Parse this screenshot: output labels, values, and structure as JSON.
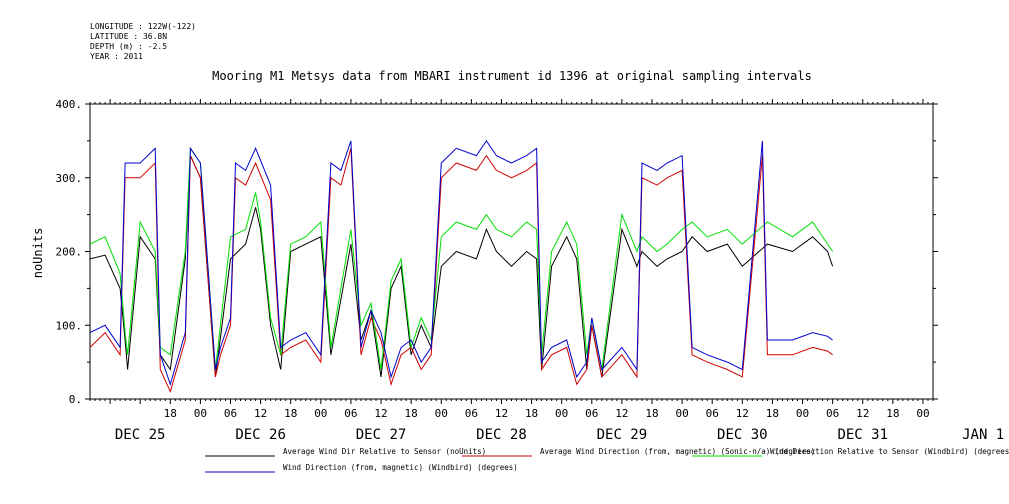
{
  "header": {
    "lines": [
      "LONGITUDE : 122W(-122)",
      "LATITUDE : 36.8N",
      "DEPTH (m) : -2.5",
      "YEAR : 2011"
    ]
  },
  "colors": {
    "black_series": "#000000",
    "red_series": "#d00000",
    "green_series": "#00e000",
    "blue_series": "#0000d0"
  },
  "chart_data": {
    "type": "line",
    "title": "Mooring M1 Metsys data from MBARI instrument id 1396 at original sampling intervals",
    "ylabel": "noUnits",
    "xlabel": "",
    "ylim": [
      0,
      400
    ],
    "y_ticks": [
      "0.",
      "100.",
      "200.",
      "300.",
      "400."
    ],
    "x_range_hours": [
      -10,
      14
    ],
    "x_tick_labels": [
      "18",
      "00",
      "06",
      "12",
      "18",
      "00",
      "06",
      "12",
      "18",
      "00",
      "06",
      "12",
      "18",
      "00",
      "06",
      "12",
      "18",
      "00",
      "06",
      "12",
      "18",
      "00",
      "06",
      "12",
      "18",
      "00",
      "06",
      "12"
    ],
    "date_labels": [
      "DEC 25",
      "DEC 26",
      "DEC 27",
      "DEC 28",
      "DEC 29",
      "DEC 30",
      "DEC 31",
      "JAN  1"
    ],
    "grid": false,
    "legend_position": "bottom",
    "series": [
      {
        "name": "Average Wind Dir Relative to Sensor (noUnits)",
        "color": "#000000",
        "points": [
          [
            -10,
            190
          ],
          [
            -7,
            195
          ],
          [
            -4,
            150
          ],
          [
            -3,
            80
          ],
          [
            -2.5,
            40
          ],
          [
            0,
            220
          ],
          [
            3,
            190
          ],
          [
            4,
            60
          ],
          [
            6,
            40
          ],
          [
            9,
            190
          ],
          [
            10,
            330
          ],
          [
            12,
            300
          ],
          [
            15,
            30
          ],
          [
            18,
            190
          ],
          [
            21,
            210
          ],
          [
            23,
            260
          ],
          [
            24,
            230
          ],
          [
            26,
            100
          ],
          [
            28,
            40
          ],
          [
            30,
            200
          ],
          [
            33,
            210
          ],
          [
            36,
            220
          ],
          [
            38,
            60
          ],
          [
            42,
            210
          ],
          [
            44,
            80
          ],
          [
            46,
            120
          ],
          [
            48,
            30
          ],
          [
            50,
            150
          ],
          [
            52,
            180
          ],
          [
            54,
            60
          ],
          [
            56,
            100
          ],
          [
            58,
            70
          ],
          [
            60,
            180
          ],
          [
            63,
            200
          ],
          [
            67,
            190
          ],
          [
            69,
            230
          ],
          [
            71,
            200
          ],
          [
            74,
            180
          ],
          [
            77,
            200
          ],
          [
            79,
            190
          ],
          [
            80,
            40
          ],
          [
            82,
            180
          ],
          [
            85,
            220
          ],
          [
            87,
            190
          ],
          [
            89,
            40
          ],
          [
            90,
            100
          ],
          [
            92,
            30
          ],
          [
            96,
            230
          ],
          [
            99,
            180
          ],
          [
            100,
            200
          ],
          [
            103,
            180
          ],
          [
            105,
            190
          ],
          [
            108,
            200
          ],
          [
            110,
            220
          ],
          [
            113,
            200
          ],
          [
            117,
            210
          ],
          [
            120,
            180
          ],
          [
            125,
            210
          ],
          [
            130,
            200
          ],
          [
            134,
            220
          ],
          [
            137,
            200
          ],
          [
            138,
            180
          ]
        ]
      },
      {
        "name": "Average Wind Direction (from,  magnetic) (Sonic-n/a) (degrees)",
        "color": "#d00000",
        "points": [
          [
            -10,
            70
          ],
          [
            -7,
            90
          ],
          [
            -4,
            60
          ],
          [
            -3,
            300
          ],
          [
            0,
            300
          ],
          [
            3,
            320
          ],
          [
            4,
            40
          ],
          [
            6,
            10
          ],
          [
            9,
            80
          ],
          [
            10,
            330
          ],
          [
            12,
            300
          ],
          [
            15,
            30
          ],
          [
            16,
            60
          ],
          [
            18,
            100
          ],
          [
            19,
            300
          ],
          [
            21,
            290
          ],
          [
            23,
            320
          ],
          [
            26,
            270
          ],
          [
            28,
            60
          ],
          [
            30,
            70
          ],
          [
            33,
            80
          ],
          [
            36,
            50
          ],
          [
            38,
            300
          ],
          [
            40,
            290
          ],
          [
            42,
            340
          ],
          [
            44,
            60
          ],
          [
            46,
            110
          ],
          [
            48,
            80
          ],
          [
            50,
            20
          ],
          [
            52,
            60
          ],
          [
            54,
            70
          ],
          [
            56,
            40
          ],
          [
            58,
            60
          ],
          [
            60,
            300
          ],
          [
            63,
            320
          ],
          [
            67,
            310
          ],
          [
            69,
            330
          ],
          [
            71,
            310
          ],
          [
            74,
            300
          ],
          [
            77,
            310
          ],
          [
            79,
            320
          ],
          [
            80,
            40
          ],
          [
            82,
            60
          ],
          [
            85,
            70
          ],
          [
            87,
            20
          ],
          [
            89,
            40
          ],
          [
            90,
            100
          ],
          [
            92,
            30
          ],
          [
            96,
            60
          ],
          [
            99,
            30
          ],
          [
            100,
            300
          ],
          [
            103,
            290
          ],
          [
            105,
            300
          ],
          [
            108,
            310
          ],
          [
            110,
            60
          ],
          [
            113,
            50
          ],
          [
            117,
            40
          ],
          [
            120,
            30
          ],
          [
            124,
            330
          ],
          [
            125,
            60
          ],
          [
            130,
            60
          ],
          [
            134,
            70
          ],
          [
            137,
            65
          ],
          [
            138,
            60
          ]
        ]
      },
      {
        "name": "Wind Direction Relative to Sensor (Windbird) (degrees)",
        "color": "#00e000",
        "points": [
          [
            -10,
            210
          ],
          [
            -7,
            220
          ],
          [
            -4,
            170
          ],
          [
            -3,
            90
          ],
          [
            -2.5,
            60
          ],
          [
            0,
            240
          ],
          [
            3,
            200
          ],
          [
            4,
            70
          ],
          [
            6,
            60
          ],
          [
            9,
            200
          ],
          [
            10,
            340
          ],
          [
            12,
            320
          ],
          [
            15,
            40
          ],
          [
            18,
            220
          ],
          [
            21,
            230
          ],
          [
            23,
            280
          ],
          [
            24,
            240
          ],
          [
            26,
            110
          ],
          [
            28,
            60
          ],
          [
            30,
            210
          ],
          [
            33,
            220
          ],
          [
            36,
            240
          ],
          [
            38,
            70
          ],
          [
            42,
            230
          ],
          [
            44,
            100
          ],
          [
            46,
            130
          ],
          [
            48,
            40
          ],
          [
            50,
            160
          ],
          [
            52,
            190
          ],
          [
            54,
            70
          ],
          [
            56,
            110
          ],
          [
            58,
            80
          ],
          [
            60,
            220
          ],
          [
            63,
            240
          ],
          [
            67,
            230
          ],
          [
            69,
            250
          ],
          [
            71,
            230
          ],
          [
            74,
            220
          ],
          [
            77,
            240
          ],
          [
            79,
            230
          ],
          [
            80,
            60
          ],
          [
            82,
            200
          ],
          [
            85,
            240
          ],
          [
            87,
            210
          ],
          [
            89,
            60
          ],
          [
            90,
            110
          ],
          [
            92,
            40
          ],
          [
            96,
            250
          ],
          [
            99,
            200
          ],
          [
            100,
            220
          ],
          [
            103,
            200
          ],
          [
            105,
            210
          ],
          [
            108,
            230
          ],
          [
            110,
            240
          ],
          [
            113,
            220
          ],
          [
            117,
            230
          ],
          [
            120,
            210
          ],
          [
            125,
            240
          ],
          [
            130,
            220
          ],
          [
            134,
            240
          ],
          [
            137,
            210
          ],
          [
            138,
            200
          ]
        ]
      },
      {
        "name": "Wind Direction (from,  magnetic) (Windbird) (degrees)",
        "color": "#0000d0",
        "points": [
          [
            -10,
            90
          ],
          [
            -7,
            100
          ],
          [
            -4,
            70
          ],
          [
            -3,
            320
          ],
          [
            0,
            320
          ],
          [
            3,
            340
          ],
          [
            4,
            60
          ],
          [
            6,
            20
          ],
          [
            9,
            90
          ],
          [
            10,
            340
          ],
          [
            12,
            320
          ],
          [
            15,
            40
          ],
          [
            16,
            70
          ],
          [
            18,
            110
          ],
          [
            19,
            320
          ],
          [
            21,
            310
          ],
          [
            23,
            340
          ],
          [
            26,
            290
          ],
          [
            28,
            70
          ],
          [
            30,
            80
          ],
          [
            33,
            90
          ],
          [
            36,
            60
          ],
          [
            38,
            320
          ],
          [
            40,
            310
          ],
          [
            42,
            350
          ],
          [
            44,
            70
          ],
          [
            46,
            120
          ],
          [
            48,
            90
          ],
          [
            50,
            30
          ],
          [
            52,
            70
          ],
          [
            54,
            80
          ],
          [
            56,
            50
          ],
          [
            58,
            70
          ],
          [
            60,
            320
          ],
          [
            63,
            340
          ],
          [
            67,
            330
          ],
          [
            69,
            350
          ],
          [
            71,
            330
          ],
          [
            74,
            320
          ],
          [
            77,
            330
          ],
          [
            79,
            340
          ],
          [
            80,
            50
          ],
          [
            82,
            70
          ],
          [
            85,
            80
          ],
          [
            87,
            30
          ],
          [
            89,
            50
          ],
          [
            90,
            110
          ],
          [
            92,
            40
          ],
          [
            96,
            70
          ],
          [
            99,
            40
          ],
          [
            100,
            320
          ],
          [
            103,
            310
          ],
          [
            105,
            320
          ],
          [
            108,
            330
          ],
          [
            110,
            70
          ],
          [
            113,
            60
          ],
          [
            117,
            50
          ],
          [
            120,
            40
          ],
          [
            124,
            350
          ],
          [
            125,
            80
          ],
          [
            130,
            80
          ],
          [
            134,
            90
          ],
          [
            137,
            85
          ],
          [
            138,
            80
          ]
        ]
      }
    ]
  }
}
